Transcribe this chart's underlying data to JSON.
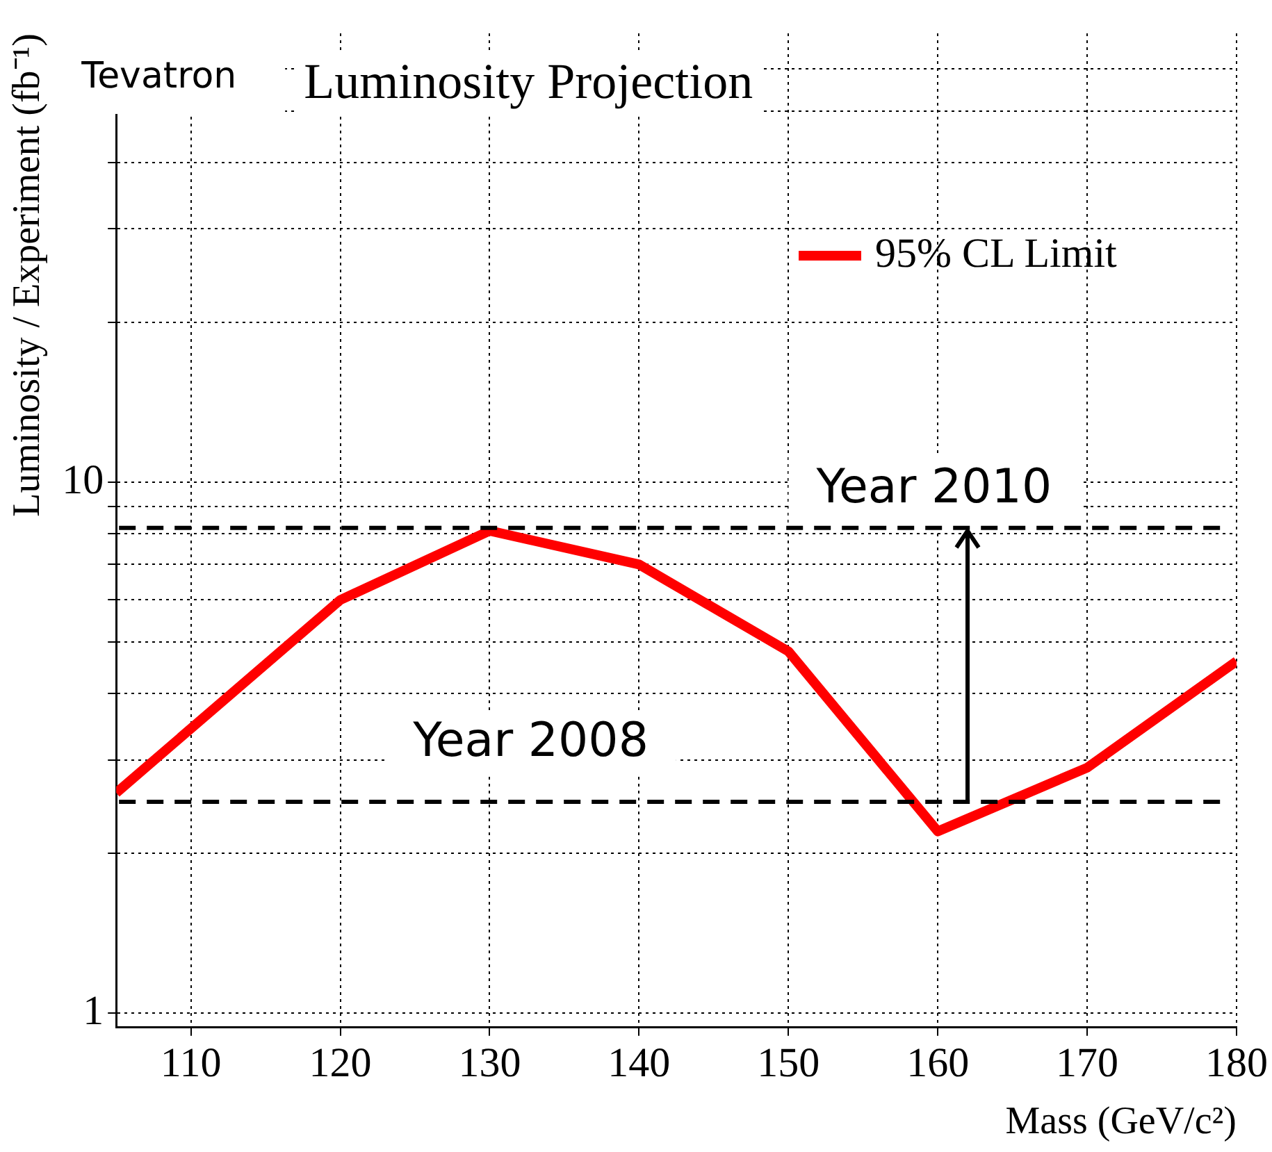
{
  "chart_data": {
    "type": "line",
    "title": "Luminosity Projection",
    "xlabel": "Mass (GeV/c²)",
    "ylabel": "Luminosity / Experiment (fb⁻¹)",
    "annotations": [
      "Tevatron"
    ],
    "x": [
      105,
      120,
      130,
      140,
      150,
      160,
      170,
      180
    ],
    "series": [
      {
        "name": "95% CL Limit",
        "color": "#ff0000",
        "values": [
          2.6,
          6.0,
          8.1,
          7.0,
          4.8,
          2.2,
          2.9,
          4.6
        ]
      }
    ],
    "ref_lines": [
      {
        "axis": "y",
        "value": 2.5,
        "label": "Year 2008",
        "color": "#000000",
        "line_style": "dashed"
      },
      {
        "axis": "y",
        "value": 8.2,
        "label": "Year 2010",
        "color": "#000000",
        "line_style": "dashed"
      }
    ],
    "xlim": [
      105,
      180
    ],
    "xticks": [
      110,
      120,
      130,
      140,
      150,
      160,
      170,
      180
    ],
    "ylim": [
      0.94,
      70
    ],
    "log": "y",
    "yticks": [
      1,
      {
        "value": 2,
        "label": null
      },
      {
        "value": 3,
        "label": null
      },
      {
        "value": 4,
        "label": null
      },
      {
        "value": 5,
        "label": null
      },
      {
        "value": 6,
        "label": null
      },
      {
        "value": 7,
        "label": null
      },
      {
        "value": 8,
        "label": null
      },
      {
        "value": 9,
        "label": null
      },
      10,
      {
        "value": 20,
        "label": null
      },
      {
        "value": 30,
        "label": null
      },
      {
        "value": 40,
        "label": null
      },
      {
        "value": 50,
        "label": null
      },
      {
        "value": 60,
        "label": null
      }
    ],
    "grid": true,
    "legend": "top right",
    "line_style": "solid"
  }
}
